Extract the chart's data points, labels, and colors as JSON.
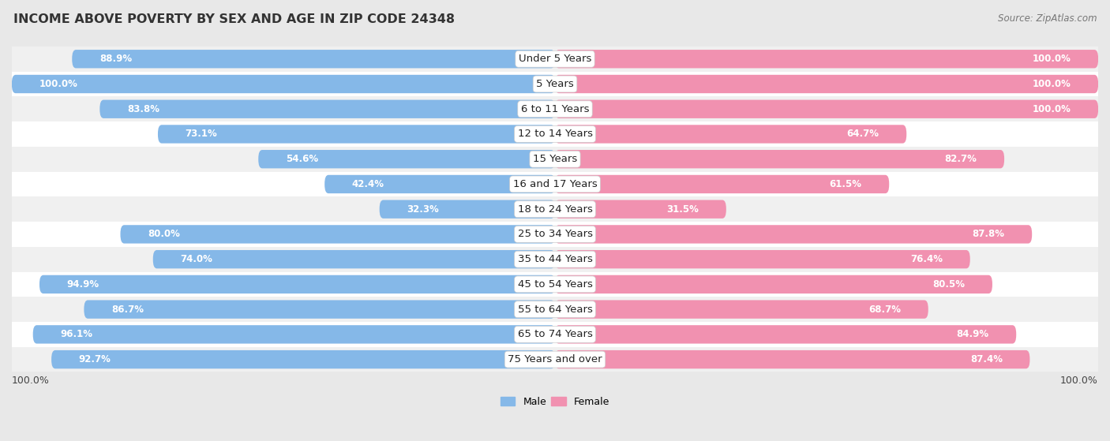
{
  "title": "INCOME ABOVE POVERTY BY SEX AND AGE IN ZIP CODE 24348",
  "source": "Source: ZipAtlas.com",
  "categories": [
    "Under 5 Years",
    "5 Years",
    "6 to 11 Years",
    "12 to 14 Years",
    "15 Years",
    "16 and 17 Years",
    "18 to 24 Years",
    "25 to 34 Years",
    "35 to 44 Years",
    "45 to 54 Years",
    "55 to 64 Years",
    "65 to 74 Years",
    "75 Years and over"
  ],
  "male_values": [
    88.9,
    100.0,
    83.8,
    73.1,
    54.6,
    42.4,
    32.3,
    80.0,
    74.0,
    94.9,
    86.7,
    96.1,
    92.7
  ],
  "female_values": [
    100.0,
    100.0,
    100.0,
    64.7,
    82.7,
    61.5,
    31.5,
    87.8,
    76.4,
    80.5,
    68.7,
    84.9,
    87.4
  ],
  "male_color": "#85b8e8",
  "female_color": "#f191b0",
  "male_label": "Male",
  "female_label": "Female",
  "background_color": "#e8e8e8",
  "bar_bg_color": "#ffffff",
  "row_alt_color": "#d8d8d8",
  "title_fontsize": 11.5,
  "source_fontsize": 8.5,
  "label_fontsize": 8.5,
  "tick_fontsize": 9,
  "category_fontsize": 9.5
}
